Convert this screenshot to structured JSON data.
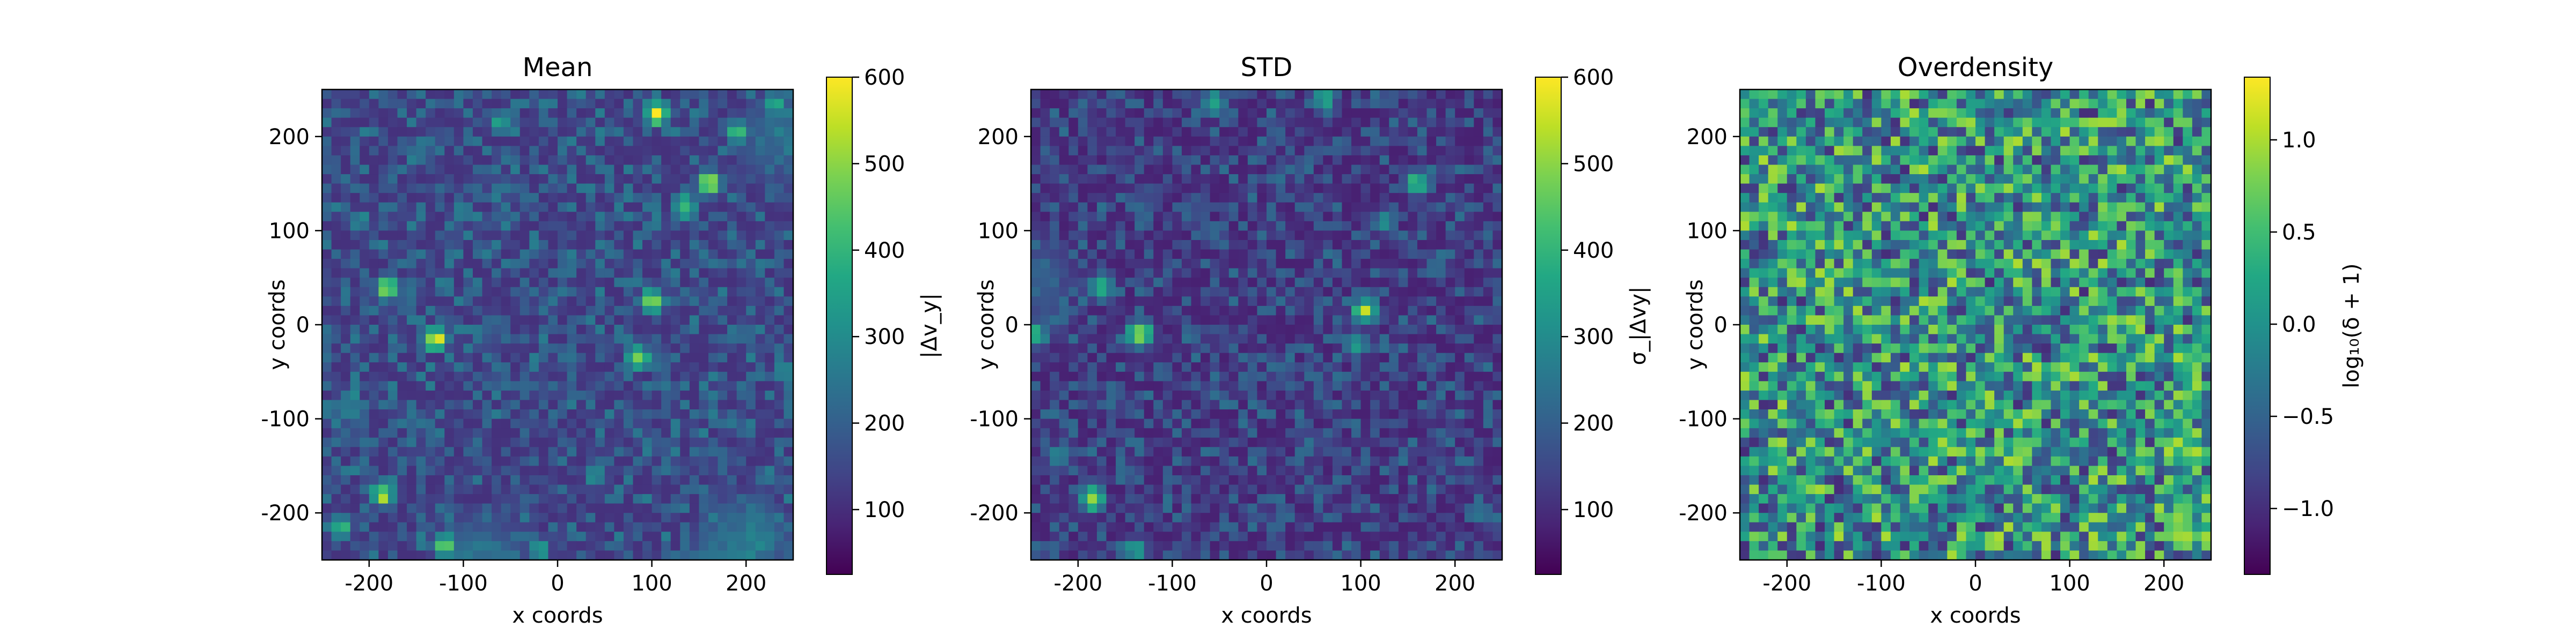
{
  "figure": {
    "panels": [
      {
        "id": "mean",
        "title": "Mean",
        "xlabel": "x coords",
        "ylabel": "y coords",
        "colorbar_label": "|Δv_y|",
        "x_ticks": [
          -200,
          -100,
          0,
          100,
          200
        ],
        "y_ticks": [
          200,
          100,
          0,
          -100,
          -200
        ],
        "colorbar_ticks": [
          "600",
          "500",
          "400",
          "300",
          "200",
          "100"
        ]
      },
      {
        "id": "std",
        "title": "STD",
        "xlabel": "x coords",
        "ylabel": "y coords",
        "colorbar_label": "σ_|Δvy|",
        "x_ticks": [
          -200,
          -100,
          0,
          100,
          200
        ],
        "y_ticks": [
          200,
          100,
          0,
          -100,
          -200
        ],
        "colorbar_ticks": [
          "600",
          "500",
          "400",
          "300",
          "200",
          "100"
        ]
      },
      {
        "id": "overdensity",
        "title": "Overdensity",
        "xlabel": "x coords",
        "ylabel": "y coords",
        "colorbar_label": "log₁₀(δ + 1)",
        "x_ticks": [
          -200,
          -100,
          0,
          100,
          200
        ],
        "y_ticks": [
          200,
          100,
          0,
          -100,
          -200
        ],
        "colorbar_ticks": [
          "1.0",
          "0.5",
          "0.0",
          "−0.5",
          "−1.0"
        ]
      }
    ]
  },
  "chart_data": [
    {
      "type": "heatmap",
      "title": "Mean",
      "xlabel": "x coords",
      "ylabel": "y coords",
      "xlim": [
        -250,
        250
      ],
      "ylim": [
        -250,
        250
      ],
      "grid_size": 50,
      "colormap": "viridis",
      "colorbar": {
        "label": "|Δv_y|",
        "range": [
          25,
          600
        ],
        "ticks": [
          100,
          200,
          300,
          400,
          500,
          600
        ]
      },
      "background_level": 0.18,
      "hotspots": [
        {
          "x": 105,
          "y": 225,
          "v": 1.0
        },
        {
          "x": -130,
          "y": -15,
          "v": 1.0
        },
        {
          "x": -180,
          "y": 40,
          "v": 0.95
        },
        {
          "x": 100,
          "y": 25,
          "v": 0.9
        },
        {
          "x": 160,
          "y": 150,
          "v": 0.95
        },
        {
          "x": -185,
          "y": -180,
          "v": 0.95
        },
        {
          "x": 85,
          "y": -35,
          "v": 0.9
        },
        {
          "x": -120,
          "y": -235,
          "v": 0.8
        },
        {
          "x": 230,
          "y": 235,
          "v": 0.7
        },
        {
          "x": 135,
          "y": 125,
          "v": 0.8
        },
        {
          "x": -60,
          "y": 215,
          "v": 0.6
        },
        {
          "x": 190,
          "y": 205,
          "v": 0.75
        },
        {
          "x": 40,
          "y": -160,
          "v": 0.55
        },
        {
          "x": -230,
          "y": -215,
          "v": 0.7
        },
        {
          "x": -210,
          "y": 110,
          "v": 0.55
        },
        {
          "x": -20,
          "y": -240,
          "v": 0.6
        },
        {
          "x": 240,
          "y": -50,
          "v": 0.55
        },
        {
          "x": -100,
          "y": 120,
          "v": 0.5
        },
        {
          "x": -220,
          "y": -80,
          "v": 0.55
        },
        {
          "x": 10,
          "y": 60,
          "v": 0.45
        },
        {
          "x": -150,
          "y": 180,
          "v": 0.5
        }
      ],
      "edge_glow": [
        {
          "x": -80,
          "y": -250,
          "v": 0.45
        },
        {
          "x": 200,
          "y": -230,
          "v": 0.5
        },
        {
          "x": 240,
          "y": 200,
          "v": 0.45
        }
      ]
    },
    {
      "type": "heatmap",
      "title": "STD",
      "xlabel": "x coords",
      "ylabel": "y coords",
      "xlim": [
        -250,
        250
      ],
      "ylim": [
        -250,
        250
      ],
      "grid_size": 50,
      "colormap": "viridis",
      "colorbar": {
        "label": "σ_|Δvy|",
        "range": [
          25,
          600
        ],
        "ticks": [
          100,
          200,
          300,
          400,
          500,
          600
        ]
      },
      "background_level": 0.13,
      "hotspots": [
        {
          "x": -135,
          "y": -10,
          "v": 1.0
        },
        {
          "x": -185,
          "y": -185,
          "v": 0.9
        },
        {
          "x": 105,
          "y": 15,
          "v": 0.9
        },
        {
          "x": -175,
          "y": 40,
          "v": 0.75
        },
        {
          "x": -55,
          "y": 235,
          "v": 0.7
        },
        {
          "x": 60,
          "y": 240,
          "v": 0.65
        },
        {
          "x": 160,
          "y": 150,
          "v": 0.75
        },
        {
          "x": -245,
          "y": -10,
          "v": 0.7
        },
        {
          "x": 125,
          "y": 110,
          "v": 0.55
        },
        {
          "x": -140,
          "y": -240,
          "v": 0.6
        },
        {
          "x": 95,
          "y": -20,
          "v": 0.6
        },
        {
          "x": -220,
          "y": -140,
          "v": 0.5
        },
        {
          "x": 180,
          "y": 60,
          "v": 0.45
        },
        {
          "x": 230,
          "y": -200,
          "v": 0.45
        }
      ],
      "edge_glow": [
        {
          "x": -250,
          "y": 40,
          "v": 0.35
        }
      ]
    },
    {
      "type": "heatmap",
      "title": "Overdensity",
      "xlabel": "x coords",
      "ylabel": "y coords",
      "xlim": [
        -250,
        250
      ],
      "ylim": [
        -250,
        250
      ],
      "grid_size": 50,
      "colormap": "viridis",
      "colorbar": {
        "label": "log₁₀(δ + 1)",
        "range": [
          -1.1,
          1.3
        ],
        "ticks": [
          -1.0,
          -0.5,
          0.0,
          0.5,
          1.0
        ]
      },
      "background_level": 0.5,
      "hotspots": [
        {
          "x": 130,
          "y": 95,
          "v": 0.95
        },
        {
          "x": 110,
          "y": -30,
          "v": 0.85
        },
        {
          "x": -60,
          "y": 215,
          "v": 0.8
        },
        {
          "x": -150,
          "y": -10,
          "v": 0.8
        },
        {
          "x": -190,
          "y": -180,
          "v": 0.8
        },
        {
          "x": 80,
          "y": 210,
          "v": 0.75
        },
        {
          "x": 190,
          "y": 140,
          "v": 0.75
        },
        {
          "x": -210,
          "y": 60,
          "v": 0.7
        },
        {
          "x": 40,
          "y": -160,
          "v": 0.7
        }
      ],
      "edge_glow": []
    }
  ]
}
